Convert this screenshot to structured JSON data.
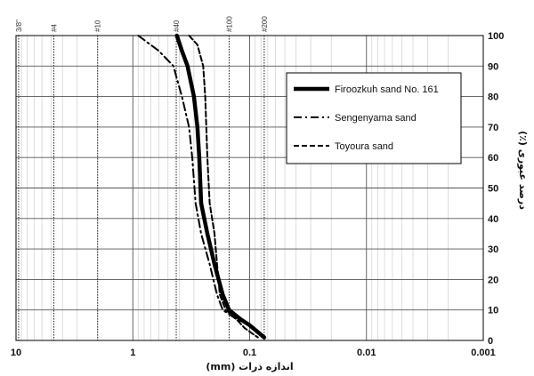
{
  "chart_data": {
    "type": "line",
    "x_scale": "log",
    "x_reversed": true,
    "xlim": [
      10,
      0.001
    ],
    "ylim": [
      0,
      100
    ],
    "xlabel": "اندازه ذرات (mm)",
    "ylabel": "درصد عبوری (٪)",
    "x_ticks": [
      "10",
      "1",
      "0.1",
      "0.01",
      "0.001"
    ],
    "y_ticks": [
      "0",
      "10",
      "20",
      "30",
      "40",
      "50",
      "60",
      "70",
      "80",
      "90",
      "100"
    ],
    "sieves": [
      {
        "label": "3/8\"",
        "size": 9.5
      },
      {
        "label": "#4",
        "size": 4.75
      },
      {
        "label": "#10",
        "size": 2.0
      },
      {
        "label": "#40",
        "size": 0.425
      },
      {
        "label": "#100",
        "size": 0.15
      },
      {
        "label": "#200",
        "size": 0.075
      }
    ],
    "legend_position": "right",
    "series": [
      {
        "name": "Firoozkuh sand No. 161",
        "style": "solid-thick",
        "color": "#000000",
        "x": [
          0.42,
          0.38,
          0.34,
          0.3,
          0.28,
          0.27,
          0.26,
          0.23,
          0.2,
          0.17,
          0.15,
          0.12,
          0.1,
          0.075
        ],
        "y": [
          100,
          95,
          90,
          80,
          70,
          60,
          45,
          35,
          25,
          15,
          10,
          7,
          5,
          1
        ]
      },
      {
        "name": "Sengenyama sand",
        "style": "dash-dot",
        "color": "#000000",
        "x": [
          0.9,
          0.6,
          0.45,
          0.38,
          0.33,
          0.31,
          0.29,
          0.26,
          0.22,
          0.19,
          0.17,
          0.13,
          0.1,
          0.08
        ],
        "y": [
          100,
          95,
          90,
          80,
          70,
          60,
          45,
          35,
          25,
          15,
          10,
          7,
          5,
          2
        ]
      },
      {
        "name": "Toyoura sand",
        "style": "dashed",
        "color": "#000000",
        "x": [
          0.33,
          0.28,
          0.25,
          0.24,
          0.235,
          0.23,
          0.22,
          0.2,
          0.19,
          0.18,
          0.16,
          0.13,
          0.11,
          0.085
        ],
        "y": [
          100,
          97,
          90,
          80,
          70,
          60,
          45,
          35,
          25,
          15,
          10,
          7,
          4,
          1
        ]
      }
    ]
  }
}
